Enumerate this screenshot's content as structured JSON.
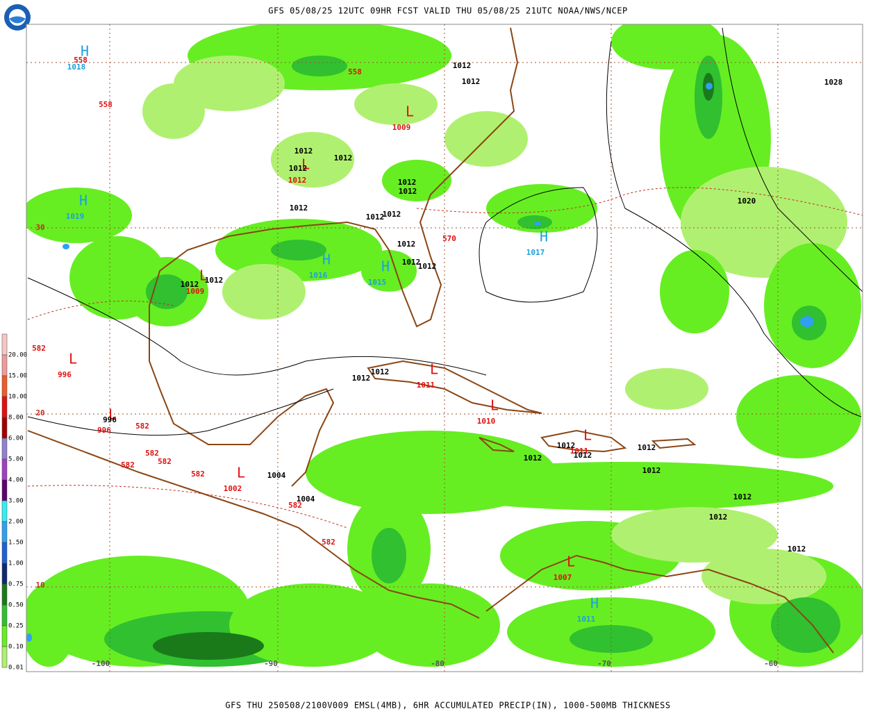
{
  "header": {
    "title": "GFS 05/08/25 12UTC 09HR FCST VALID THU 05/08/25 21UTC NOAA/NWS/NCEP"
  },
  "footer": {
    "caption": "GFS THU 250508/2100V009 EMSL(4MB), 6HR ACCUMULATED PRECIP(IN), 1000-500MB THICKNESS"
  },
  "legend": {
    "items": [
      {
        "label": "20.00",
        "color": "#f6c6c6"
      },
      {
        "label": "15.00",
        "color": "#f09a9a"
      },
      {
        "label": "10.00",
        "color": "#f05a28"
      },
      {
        "label": "8.00",
        "color": "#e01010"
      },
      {
        "label": "6.00",
        "color": "#a00000"
      },
      {
        "label": "5.00",
        "color": "#9080d0"
      },
      {
        "label": "4.00",
        "color": "#a040c0"
      },
      {
        "label": "3.00",
        "color": "#600070"
      },
      {
        "label": "2.00",
        "color": "#30f0f0"
      },
      {
        "label": "1.50",
        "color": "#30a0f0"
      },
      {
        "label": "1.00",
        "color": "#2060d0"
      },
      {
        "label": "0.75",
        "color": "#102a70"
      },
      {
        "label": "0.50",
        "color": "#1a7a1a"
      },
      {
        "label": "0.25",
        "color": "#30c030"
      },
      {
        "label": "0.10",
        "color": "#66ee22"
      },
      {
        "label": "0.01",
        "color": "#b0f070"
      }
    ]
  },
  "latitude_labels": [
    "30",
    "20",
    "10"
  ],
  "longitude_labels": [
    "-100",
    "-90",
    "-80",
    "-70",
    "-60"
  ],
  "highs": {
    "color": "#1aa0e0",
    "centers": [
      {
        "symbol": "H",
        "value": "1018"
      },
      {
        "symbol": "H",
        "value": "1019"
      },
      {
        "symbol": "H",
        "value": "1016"
      },
      {
        "symbol": "H",
        "value": "1015"
      },
      {
        "symbol": "H",
        "value": "1017"
      },
      {
        "symbol": "H",
        "value": "1011"
      }
    ]
  },
  "lows": {
    "color": "#e01010",
    "centers": [
      {
        "symbol": "L",
        "value": "1009"
      },
      {
        "symbol": "L",
        "value": "1012"
      },
      {
        "symbol": "L",
        "value": "1009"
      },
      {
        "symbol": "L",
        "value": "996"
      },
      {
        "symbol": "L",
        "value": "996"
      },
      {
        "symbol": "L",
        "value": "1011"
      },
      {
        "symbol": "L",
        "value": "1010"
      },
      {
        "symbol": "L",
        "value": "1002"
      },
      {
        "symbol": "L",
        "value": "1007"
      },
      {
        "symbol": "L",
        "value": "1011"
      }
    ]
  },
  "isobar_labels": {
    "color": "#000000",
    "labels": [
      "1012",
      "1012",
      "1012",
      "1012",
      "1012",
      "1012",
      "1012",
      "1012",
      "1012",
      "1012",
      "1012",
      "1012",
      "1012",
      "1012",
      "1012",
      "1012",
      "1012",
      "1012",
      "1012",
      "1012",
      "1012",
      "1012",
      "1012",
      "1012",
      "1012",
      "1028",
      "1020",
      "996",
      "1004",
      "1004"
    ]
  },
  "thickness_labels": {
    "color": "#e01010",
    "labels": [
      "558",
      "558",
      "558",
      "570",
      "582",
      "582",
      "582",
      "582",
      "582",
      "582",
      "582",
      "582"
    ]
  }
}
